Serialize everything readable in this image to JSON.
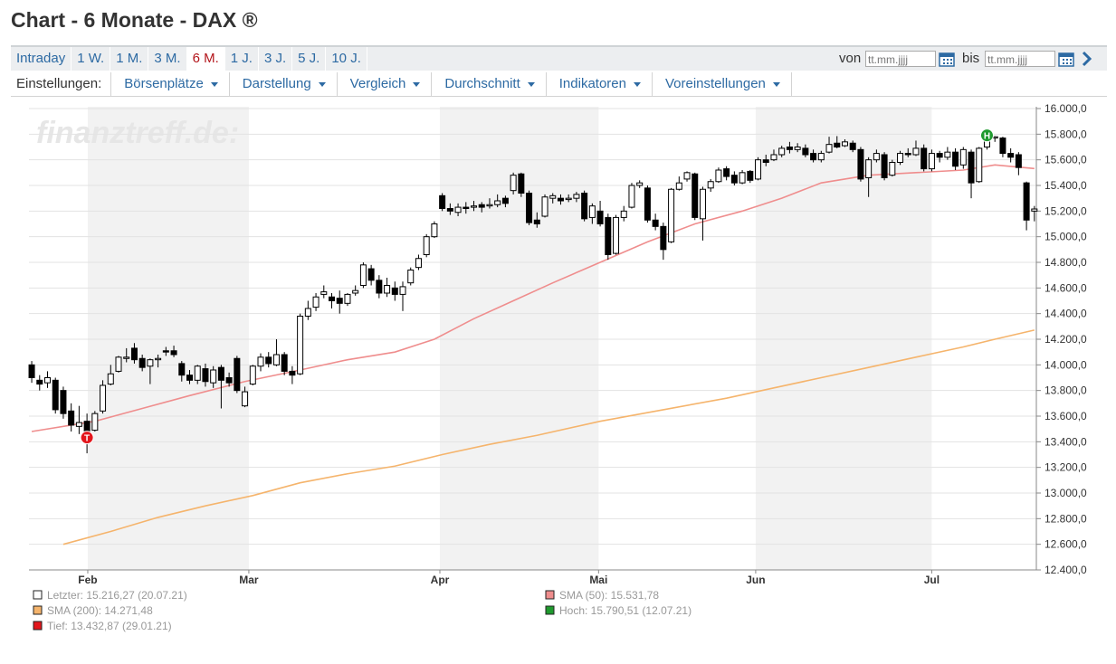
{
  "header": {
    "title": "Chart - 6 Monate - DAX ®"
  },
  "tabs": {
    "items": [
      "Intraday",
      "1 W.",
      "1 M.",
      "3 M.",
      "6 M.",
      "1 J.",
      "3 J.",
      "5 J.",
      "10 J."
    ],
    "active": 4
  },
  "date_range": {
    "from_label": "von",
    "from_placeholder": "tt.mm.jjjj",
    "to_label": "bis",
    "to_placeholder": "tt.mm.jjjj"
  },
  "toolbar": {
    "label": "Einstellungen:",
    "menus": [
      "Börsenplätze",
      "Darstellung",
      "Vergleich",
      "Durchschnitt",
      "Indikatoren",
      "Voreinstellungen"
    ]
  },
  "chart_data": {
    "type": "candlestick",
    "watermark": "finanztreff.de:",
    "open": [
      14000,
      13880,
      13860,
      13880,
      13800,
      13640,
      13520,
      13560,
      13490,
      13640,
      13850,
      13950,
      14050,
      14130,
      14050,
      13990,
      14040,
      14110,
      14110,
      14010,
      13920,
      13880,
      13970,
      13860,
      13980,
      13900,
      14050,
      13680,
      13850,
      13990,
      14060,
      14000,
      14080,
      13950,
      13930,
      14380,
      14450,
      14550,
      14530,
      14520,
      14480,
      14560,
      14620,
      14750,
      14660,
      14560,
      14600,
      14550,
      14640,
      14760,
      14860,
      15000,
      15320,
      15220,
      15190,
      15230,
      15230,
      15250,
      15240,
      15250,
      15300,
      15360,
      15490,
      15340,
      15130,
      15160,
      15300,
      15300,
      15290,
      15300,
      15340,
      15150,
      15200,
      15150,
      14870,
      15150,
      15230,
      15400,
      15380,
      15130,
      15080,
      14960,
      15370,
      15450,
      15490,
      15140,
      15380,
      15430,
      15530,
      15480,
      15420,
      15510,
      15450,
      15600,
      15600,
      15640,
      15700,
      15680,
      15690,
      15650,
      15600,
      15660,
      15730,
      15710,
      15730,
      15680,
      15460,
      15600,
      15640,
      15480,
      15580,
      15650,
      15640,
      15690,
      15530,
      15650,
      15620,
      15660,
      15560,
      15660,
      15430,
      15700,
      15770,
      15770,
      15650,
      15640,
      15420,
      15200
    ],
    "high": [
      14030,
      13920,
      13950,
      13900,
      13830,
      13700,
      13680,
      13620,
      13640,
      13880,
      14000,
      14070,
      14130,
      14170,
      14080,
      14050,
      14080,
      14140,
      14150,
      14030,
      13960,
      14000,
      14010,
      13990,
      14000,
      13940,
      14070,
      13830,
      14000,
      14090,
      14100,
      14200,
      14100,
      13990,
      14400,
      14500,
      14560,
      14620,
      14560,
      14580,
      14560,
      14620,
      14800,
      14780,
      14700,
      14680,
      14650,
      14650,
      14760,
      14860,
      15020,
      15120,
      15340,
      15260,
      15260,
      15270,
      15280,
      15270,
      15300,
      15330,
      15320,
      15500,
      15500,
      15360,
      15190,
      15330,
      15340,
      15330,
      15330,
      15350,
      15360,
      15260,
      15280,
      15180,
      15170,
      15240,
      15420,
      15440,
      15400,
      15180,
      15110,
      15380,
      15470,
      15510,
      15500,
      15390,
      15450,
      15540,
      15550,
      15510,
      15520,
      15520,
      15620,
      15640,
      15680,
      15710,
      15740,
      15730,
      15720,
      15680,
      15670,
      15780,
      15785,
      15760,
      15750,
      15700,
      15620,
      15680,
      15660,
      15600,
      15670,
      15690,
      15750,
      15720,
      15680,
      15670,
      15700,
      15690,
      15700,
      15680,
      15700,
      15790.51,
      15785,
      15780,
      15690,
      15660,
      15430,
      15240
    ],
    "low": [
      13860,
      13800,
      13820,
      13620,
      13580,
      13480,
      13460,
      13310,
      13480,
      13620,
      13840,
      13940,
      14020,
      14010,
      13950,
      13850,
      13980,
      14070,
      14060,
      13870,
      13850,
      13850,
      13830,
      13820,
      13660,
      13830,
      13780,
      13670,
      13840,
      13950,
      13980,
      13990,
      13920,
      13850,
      13920,
      14350,
      14420,
      14520,
      14440,
      14400,
      14460,
      14540,
      14600,
      14620,
      14520,
      14530,
      14500,
      14420,
      14620,
      14740,
      14840,
      14990,
      15200,
      15170,
      15160,
      15180,
      15200,
      15190,
      15220,
      15230,
      15230,
      15330,
      15310,
      15090,
      15070,
      15150,
      15260,
      15250,
      15270,
      15270,
      15120,
      15100,
      15080,
      14820,
      14860,
      15120,
      15220,
      15380,
      15110,
      15050,
      14820,
      14950,
      15360,
      15430,
      15130,
      14970,
      15350,
      15420,
      15440,
      15400,
      15410,
      15420,
      15440,
      15550,
      15590,
      15620,
      15650,
      15660,
      15620,
      15580,
      15580,
      15650,
      15690,
      15700,
      15660,
      15430,
      15310,
      15580,
      15440,
      15470,
      15560,
      15620,
      15630,
      15510,
      15510,
      15580,
      15600,
      15520,
      15530,
      15300,
      15420,
      15680,
      15740,
      15620,
      15580,
      15480,
      15050,
      15120
    ],
    "close": [
      13900,
      13850,
      13900,
      13650,
      13620,
      13530,
      13550,
      13432.87,
      13620,
      13840,
      13930,
      14060,
      14060,
      14040,
      13980,
      14040,
      14050,
      14100,
      14080,
      13920,
      13880,
      13990,
      13870,
      13960,
      13880,
      13860,
      13800,
      13790,
      13990,
      14060,
      14010,
      14080,
      13950,
      13920,
      14380,
      14440,
      14530,
      14570,
      14500,
      14480,
      14550,
      14580,
      14780,
      14660,
      14560,
      14620,
      14550,
      14610,
      14740,
      14830,
      15000,
      15100,
      15220,
      15200,
      15230,
      15220,
      15240,
      15230,
      15250,
      15280,
      15260,
      15480,
      15340,
      15110,
      15100,
      15310,
      15320,
      15280,
      15300,
      15330,
      15140,
      15240,
      15100,
      14860,
      15150,
      15200,
      15400,
      15420,
      15130,
      15080,
      14900,
      15370,
      15420,
      15500,
      15150,
      15370,
      15430,
      15520,
      15470,
      15420,
      15500,
      15440,
      15600,
      15580,
      15640,
      15690,
      15680,
      15700,
      15640,
      15600,
      15650,
      15720,
      15700,
      15740,
      15680,
      15450,
      15600,
      15650,
      15460,
      15580,
      15650,
      15640,
      15690,
      15530,
      15650,
      15620,
      15660,
      15550,
      15680,
      15420,
      15690,
      15750,
      15780,
      15650,
      15620,
      15540,
      15130,
      15216.27
    ],
    "color_up": "#ffffff",
    "color_down": "#000000",
    "series": [
      {
        "color": "#ef8d8d",
        "x": [
          0,
          8,
          14,
          20,
          27,
          34,
          40,
          46,
          51,
          56,
          61,
          66,
          72,
          78,
          84,
          90,
          95,
          100,
          106,
          112,
          118,
          122,
          127
        ],
        "values": [
          13480,
          13560,
          13660,
          13760,
          13870,
          13960,
          14040,
          14100,
          14200,
          14360,
          14500,
          14640,
          14800,
          14960,
          15100,
          15200,
          15300,
          15420,
          15480,
          15500,
          15520,
          15560,
          15531.78
        ]
      },
      {
        "color": "#f5b46c",
        "x": [
          4,
          10,
          16,
          22,
          28,
          34,
          40,
          46,
          52,
          58,
          64,
          72,
          80,
          88,
          94,
          100,
          106,
          112,
          118,
          122,
          127
        ],
        "values": [
          12600,
          12700,
          12810,
          12900,
          12980,
          13080,
          13150,
          13210,
          13300,
          13380,
          13450,
          13560,
          13650,
          13740,
          13820,
          13900,
          13980,
          14060,
          14140,
          14200,
          14271.48
        ]
      }
    ],
    "markers": [
      {
        "label": "T",
        "x": 7,
        "value": 13432.87,
        "color": "#e3161c"
      },
      {
        "label": "H",
        "x": 121,
        "value": 15790.51,
        "color": "#1f9a2e"
      }
    ],
    "legend": [
      {
        "text": "Letzter: 15.216,27 (20.07.21)",
        "color": "#ffffff"
      },
      {
        "text": "SMA (50): 15.531,78",
        "color": "#ef8d8d"
      },
      {
        "text": "SMA (200): 14.271,48",
        "color": "#f5b46c"
      },
      {
        "text": "Hoch: 15.790,51 (12.07.21)",
        "color": "#1f9a2e"
      },
      {
        "text": "Tief: 13.432,87 (29.01.21)",
        "color": "#e3161c"
      }
    ],
    "xlim": [
      -0.35,
      127.25
    ],
    "xticks": [
      {
        "value": 7.1,
        "label": "Feb"
      },
      {
        "value": 27.5,
        "label": "Mar"
      },
      {
        "value": 51.7,
        "label": "Apr"
      },
      {
        "value": 71.8,
        "label": "Mai"
      },
      {
        "value": 91.7,
        "label": "Jun"
      },
      {
        "value": 114,
        "label": "Jul"
      }
    ],
    "ylim": [
      12400,
      16000
    ],
    "yticks": [
      {
        "value": 12400,
        "label": "12.400,0"
      },
      {
        "value": 12600,
        "label": "12.600,0"
      },
      {
        "value": 12800,
        "label": "12.800,0"
      },
      {
        "value": 13000,
        "label": "13.000,0"
      },
      {
        "value": 13200,
        "label": "13.200,0"
      },
      {
        "value": 13400,
        "label": "13.400,0"
      },
      {
        "value": 13600,
        "label": "13.600,0"
      },
      {
        "value": 13800,
        "label": "13.800,0"
      },
      {
        "value": 14000,
        "label": "14.000,0"
      },
      {
        "value": 14200,
        "label": "14.200,0"
      },
      {
        "value": 14400,
        "label": "14.400,0"
      },
      {
        "value": 14600,
        "label": "14.600,0"
      },
      {
        "value": 14800,
        "label": "14.800,0"
      },
      {
        "value": 15000,
        "label": "15.000,0"
      },
      {
        "value": 15200,
        "label": "15.200,0"
      },
      {
        "value": 15400,
        "label": "15.400,0"
      },
      {
        "value": 15600,
        "label": "15.600,0"
      },
      {
        "value": 15800,
        "label": "15.800,0"
      },
      {
        "value": 16000,
        "label": "16.000,0"
      }
    ],
    "grid": true,
    "y_axis_side": "right"
  }
}
